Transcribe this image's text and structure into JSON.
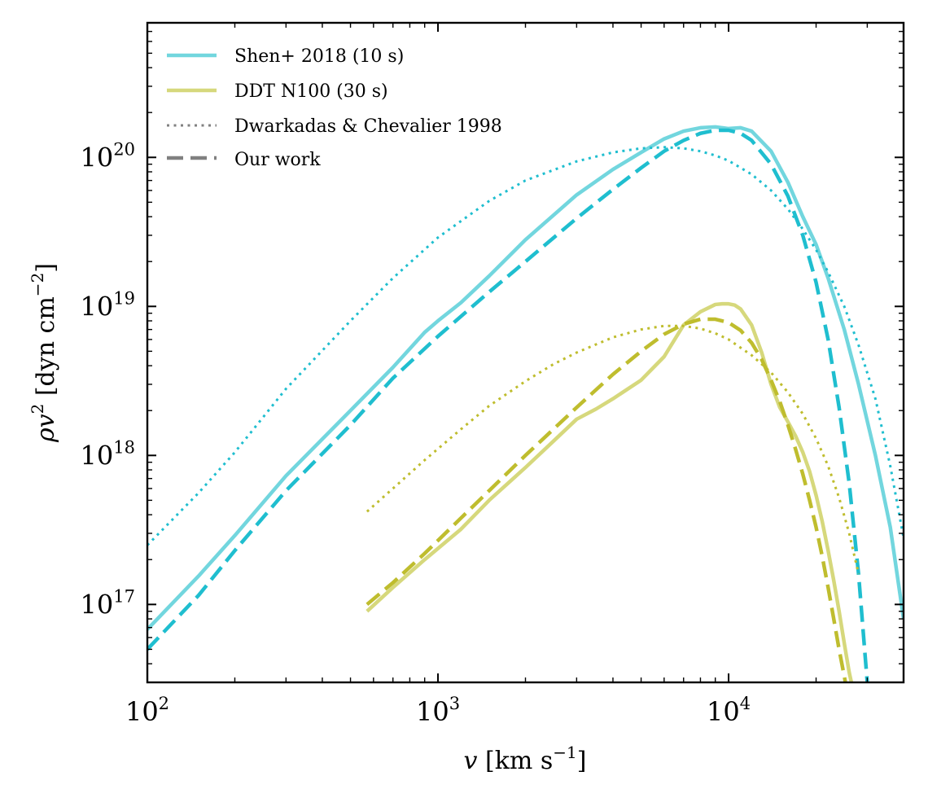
{
  "chart_data": {
    "type": "line",
    "xscale": "log",
    "yscale": "log",
    "xlim": [
      100,
      40000
    ],
    "ylim": [
      3e+16,
      8e+20
    ],
    "xlabel": {
      "base": "v",
      "unit_pre": " [km s",
      "exp": "−1",
      "unit_post": "]"
    },
    "ylabel": {
      "base": "ρv",
      "base_exp": "2",
      "unit_pre": " [dyn cm",
      "exp": "−2",
      "unit_post": "]"
    },
    "xticks": [
      {
        "value": 100,
        "base": "10",
        "exp": "2"
      },
      {
        "value": 1000,
        "base": "10",
        "exp": "3"
      },
      {
        "value": 10000,
        "base": "10",
        "exp": "4"
      }
    ],
    "yticks": [
      {
        "value": 1e+17,
        "base": "10",
        "exp": "17"
      },
      {
        "value": 1e+18,
        "base": "10",
        "exp": "18"
      },
      {
        "value": 1e+19,
        "base": "10",
        "exp": "19"
      },
      {
        "value": 1e+20,
        "base": "10",
        "exp": "20"
      }
    ],
    "legend": {
      "position": "top-left",
      "entries": [
        {
          "label": "Shen+ 2018 (10 s)",
          "color": "#72D6DE",
          "style": "solid"
        },
        {
          "label": "DDT N100 (30 s)",
          "color": "#D6D87C",
          "style": "solid"
        },
        {
          "label": "Dwarkadas & Chevalier 1998",
          "color": "#808080",
          "style": "dotted"
        },
        {
          "label": "Our work",
          "color": "#808080",
          "style": "dashed"
        }
      ]
    },
    "series": [
      {
        "name": "Shen+ 2018 (10 s) simulation",
        "color": "#72D6DE",
        "style": "solid",
        "x": [
          100,
          150,
          200,
          300,
          500,
          700,
          900,
          1000,
          1200,
          1500,
          2000,
          3000,
          4000,
          5000,
          6000,
          7000,
          8000,
          9000,
          10000,
          11000,
          12000,
          14000,
          16000,
          18000,
          20000,
          22000,
          25000,
          28000,
          32000,
          36000,
          40000
        ],
        "y": [
          6.8e+16,
          1.55e+17,
          2.9e+17,
          7.3e+17,
          2e+18,
          3.9e+18,
          6.7e+18,
          8e+18,
          1.06e+19,
          1.6e+19,
          2.8e+19,
          5.6e+19,
          8.3e+19,
          1.08e+20,
          1.33e+20,
          1.5e+20,
          1.58e+20,
          1.6e+20,
          1.56e+20,
          1.58e+20,
          1.5e+20,
          1.1e+20,
          6.8e+19,
          4e+19,
          2.6e+19,
          1.55e+19,
          7e+18,
          3e+18,
          1e+18,
          3.3e+17,
          8e+16
        ]
      },
      {
        "name": "Shen+ 2018 (10 s) Our work",
        "color": "#1FBECF",
        "style": "dashed",
        "x": [
          100,
          150,
          200,
          300,
          500,
          700,
          1000,
          1500,
          2000,
          3000,
          4000,
          5000,
          6000,
          7000,
          8000,
          9000,
          10000,
          11000,
          12000,
          14000,
          16000,
          18000,
          20000,
          22000,
          24000,
          26000,
          28000,
          30000
        ],
        "y": [
          5e+16,
          1.15e+17,
          2.3e+17,
          5.8e+17,
          1.6e+18,
          3.3e+18,
          6.3e+18,
          1.25e+19,
          2e+19,
          3.9e+19,
          6.1e+19,
          8.5e+19,
          1.1e+20,
          1.3e+20,
          1.45e+20,
          1.52e+20,
          1.52e+20,
          1.45e+20,
          1.3e+20,
          9e+19,
          5.5e+19,
          3e+19,
          1.45e+19,
          6e+18,
          2.1e+18,
          6.5e+17,
          1.6e+17,
          3e+16
        ]
      },
      {
        "name": "Shen+ 2018 (10 s) Dwarkadas & Chevalier 1998",
        "color": "#1FBECF",
        "style": "dotted",
        "x": [
          100,
          150,
          200,
          300,
          500,
          700,
          1000,
          1500,
          2000,
          3000,
          4000,
          5000,
          6000,
          7000,
          8000,
          9000,
          10000,
          12000,
          14000,
          16000,
          18000,
          20000,
          22000,
          25000,
          28000,
          32000,
          36000,
          40000
        ],
        "y": [
          2.5e+17,
          5.6e+17,
          1.05e+18,
          2.8e+18,
          8e+18,
          1.55e+19,
          2.9e+19,
          5.1e+19,
          7e+19,
          9.4e+19,
          1.08e+20,
          1.15e+20,
          1.17e+20,
          1.15e+20,
          1.1e+20,
          1.03e+20,
          9.5e+19,
          7.7e+19,
          6e+19,
          4.5e+19,
          3.3e+19,
          2.4e+19,
          1.7e+19,
          1e+19,
          5.5e+18,
          2.4e+18,
          8.5e+17,
          2.8e+17
        ]
      },
      {
        "name": "DDT N100 (30 s) simulation",
        "color": "#D6D87C",
        "style": "solid",
        "x": [
          570,
          700,
          900,
          1200,
          1500,
          2000,
          2500,
          3000,
          3500,
          4000,
          5000,
          6000,
          7000,
          8000,
          9000,
          9500,
          10000,
          10500,
          11000,
          12000,
          13000,
          14000,
          15000,
          16000,
          17000,
          18000,
          19000,
          20000,
          21000,
          22000,
          23000,
          24000,
          25000,
          26000,
          27000
        ],
        "y": [
          9e+16,
          1.3e+17,
          2e+17,
          3.2e+17,
          5e+17,
          8.3e+17,
          1.25e+18,
          1.75e+18,
          2.05e+18,
          2.4e+18,
          3.2e+18,
          4.6e+18,
          7.5e+18,
          9.2e+18,
          1.03e+19,
          1.04e+19,
          1.04e+19,
          1.02e+19,
          9.6e+18,
          7.5e+18,
          4.9e+18,
          3e+18,
          2.1e+18,
          1.68e+18,
          1.35e+18,
          1.05e+18,
          7.8e+17,
          5.4e+17,
          3.6e+17,
          2.3e+17,
          1.45e+17,
          9e+16,
          5.5e+16,
          3.5e+16,
          2.5e+16
        ]
      },
      {
        "name": "DDT N100 (30 s) Our work",
        "color": "#BFBD2E",
        "style": "dashed",
        "x": [
          570,
          700,
          900,
          1200,
          1500,
          2000,
          3000,
          4000,
          5000,
          6000,
          7000,
          8000,
          9000,
          10000,
          11000,
          12000,
          13000,
          14000,
          15000,
          16000,
          17000,
          18000,
          19000,
          20000,
          21000,
          22000,
          23000,
          24000,
          25000,
          26000
        ],
        "y": [
          1e+17,
          1.4e+17,
          2.2e+17,
          3.8e+17,
          5.8e+17,
          1e+18,
          2.1e+18,
          3.5e+18,
          5e+18,
          6.5e+18,
          7.6e+18,
          8.2e+18,
          8.2e+18,
          7.8e+18,
          6.9e+18,
          5.7e+18,
          4.4e+18,
          3.2e+18,
          2.3e+18,
          1.6e+18,
          1.1e+18,
          7.5e+17,
          5e+17,
          3.3e+17,
          2.1e+17,
          1.3e+17,
          8e+16,
          5e+16,
          3.3e+16,
          2.2e+16
        ]
      },
      {
        "name": "DDT N100 (30 s) Dwarkadas & Chevalier 1998",
        "color": "#BFBD2E",
        "style": "dotted",
        "x": [
          570,
          700,
          900,
          1200,
          1500,
          2000,
          2500,
          3000,
          4000,
          5000,
          6000,
          7000,
          8000,
          9000,
          10000,
          12000,
          14000,
          16000,
          18000,
          20000,
          22000,
          24000,
          26000,
          28000
        ],
        "y": [
          4.2e+17,
          6e+17,
          9.3e+17,
          1.5e+18,
          2.15e+18,
          3.15e+18,
          4.1e+18,
          4.9e+18,
          6.2e+18,
          7e+18,
          7.4e+18,
          7.4e+18,
          7.1e+18,
          6.6e+18,
          6e+18,
          4.7e+18,
          3.6e+18,
          2.65e+18,
          1.9e+18,
          1.3e+18,
          8.5e+17,
          5.2e+17,
          3e+17,
          1.6e+17
        ]
      }
    ]
  }
}
